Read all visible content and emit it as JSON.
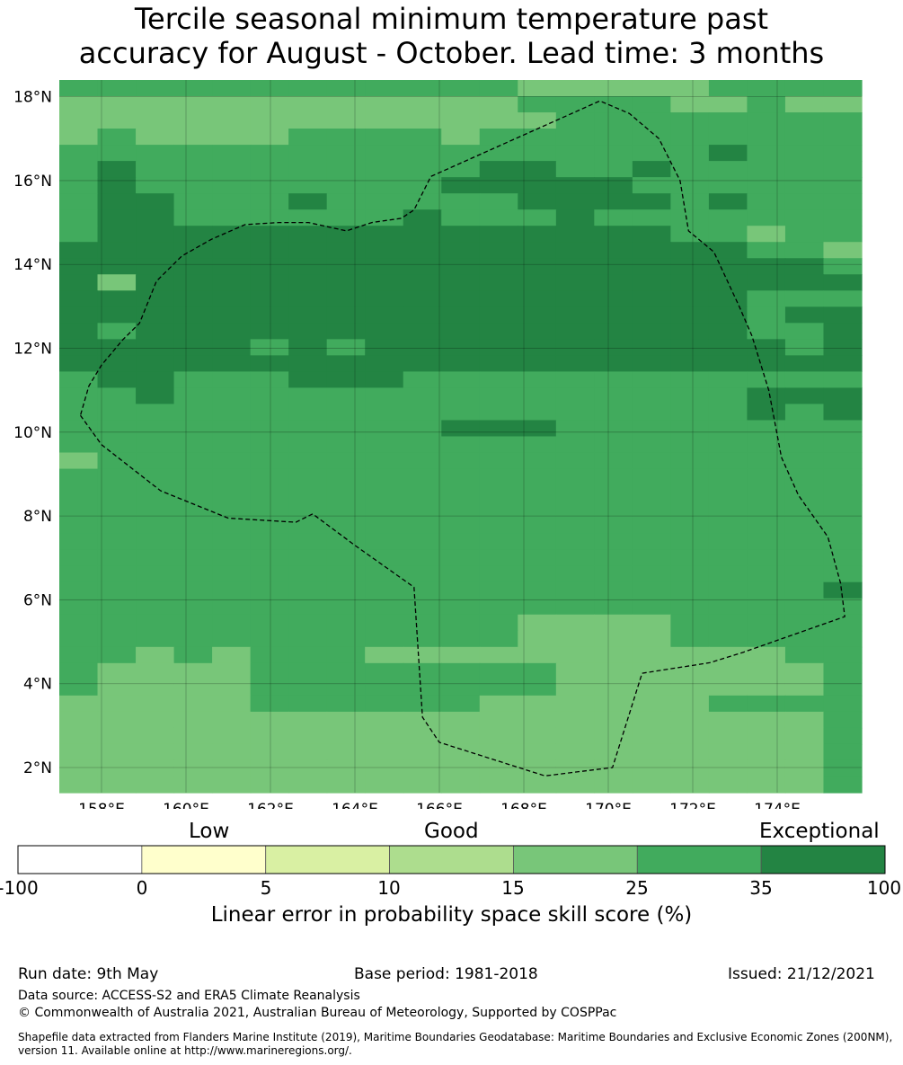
{
  "title_line1": "Tercile seasonal minimum temperature past",
  "title_line2": "accuracy for August - October. Lead time: 3 months",
  "map": {
    "lon_range": [
      157,
      176
    ],
    "lat_range": [
      1.4,
      18.4
    ],
    "x_ticks": [
      "158°E",
      "160°E",
      "162°E",
      "164°E",
      "166°E",
      "168°E",
      "170°E",
      "172°E",
      "174°E"
    ],
    "y_ticks": [
      "18°N",
      "16°N",
      "14°N",
      "12°N",
      "10°N",
      "8°N",
      "6°N",
      "4°N",
      "2°N"
    ],
    "palette": {
      "1": "#78c679",
      "2": "#41ab5d",
      "3": "#238443"
    },
    "grid_rows": [
      "222222222222111112222",
      "111111111111222211211",
      "111111111111122222222",
      "121111222212222222222",
      "222222222222222223222",
      "232222222223322322222",
      "232222222233333222222",
      "233222322222333323222",
      "233222222322232222222",
      "233333333333333322122",
      "333333333333333333221",
      "333333333333333333332",
      "313333333333333333333",
      "333333333333333333222",
      "333333333333333333233",
      "323333333333333333223",
      "333332323333333333323",
      "333333333333333333333",
      "233222333222222222222",
      "223222222222222222333",
      "222222222222222222323",
      "222222222233322222222",
      "222222222222222222222",
      "122222222222222222222",
      "222222222222222222222",
      "222222222222222222222",
      "222222222222222222222",
      "222222222222222222222",
      "222222222222222222222",
      "222222222222222222222",
      "222222222222222222222",
      "222222222222222222223",
      "222222222222222222222",
      "222222222222111122222",
      "222222222222111122222",
      "221212221111111111122",
      "211112222222211111112",
      "211112222222211111112",
      "111112222221111112222",
      "111111111111111111112",
      "111111111111111111112",
      "111111111111111111112",
      "111111111111111111112",
      "111111111111111111112"
    ],
    "eez_boundary": [
      [
        157.5,
        10.4
      ],
      [
        158,
        9.7
      ],
      [
        159.4,
        8.6
      ],
      [
        161,
        7.95
      ],
      [
        162.6,
        7.85
      ],
      [
        163,
        8.05
      ],
      [
        164,
        7.3
      ],
      [
        165.4,
        6.3
      ],
      [
        165.6,
        3.2
      ],
      [
        166,
        2.6
      ],
      [
        168.5,
        1.8
      ],
      [
        170.1,
        2.0
      ],
      [
        170.8,
        4.25
      ],
      [
        172.4,
        4.5
      ],
      [
        173.2,
        4.75
      ],
      [
        175.6,
        5.6
      ],
      [
        175.5,
        6.4
      ],
      [
        175.2,
        7.5
      ],
      [
        174.5,
        8.5
      ],
      [
        174.1,
        9.4
      ],
      [
        173.8,
        11.0
      ],
      [
        173.4,
        12.3
      ],
      [
        173.1,
        13.0
      ],
      [
        172.5,
        14.3
      ],
      [
        171.9,
        14.8
      ],
      [
        171.7,
        16.0
      ],
      [
        171.2,
        17.0
      ],
      [
        170.5,
        17.6
      ],
      [
        169.8,
        17.9
      ],
      [
        165.8,
        16.1
      ],
      [
        165.4,
        15.3
      ],
      [
        165.1,
        15.1
      ],
      [
        164.4,
        15.0
      ],
      [
        163.8,
        14.8
      ],
      [
        162.9,
        15.0
      ],
      [
        162.2,
        15.0
      ],
      [
        161.4,
        14.95
      ],
      [
        160.6,
        14.6
      ],
      [
        159.9,
        14.2
      ],
      [
        159.3,
        13.6
      ],
      [
        158.9,
        12.6
      ],
      [
        158.5,
        12.2
      ],
      [
        158,
        11.6
      ],
      [
        157.7,
        11.1
      ],
      [
        157.5,
        10.4
      ]
    ]
  },
  "legend": {
    "categories": [
      {
        "label": "Low",
        "position": "0"
      },
      {
        "label": "Good",
        "position": "10"
      },
      {
        "label": "Exceptional",
        "position": "100"
      }
    ],
    "bins": [
      {
        "color": "#ffffff"
      },
      {
        "color": "#ffffcc"
      },
      {
        "color": "#d9f0a3"
      },
      {
        "color": "#addd8e"
      },
      {
        "color": "#78c679"
      },
      {
        "color": "#41ab5d"
      },
      {
        "color": "#238443"
      }
    ],
    "boundaries": [
      "-100",
      "0",
      "5",
      "10",
      "15",
      "25",
      "35",
      "100"
    ],
    "title": "Linear error in probability space skill score (%)"
  },
  "footer": {
    "run_date": "Run date: 9th May",
    "base_period": "Base period: 1981-2018",
    "issued": "Issued: 21/12/2021",
    "data_source": "Data source: ACCESS-S2 and ERA5 Climate Reanalysis",
    "copyright": "© Commonwealth of Australia 2021, Australian Bureau of Meteorology, Supported by COSPPac",
    "shapefile_line1": "Shapefile data extracted from Flanders Marine Institute (2019), Maritime Boundaries Geodatabase: Maritime Boundaries and Exclusive Economic Zones (200NM),",
    "shapefile_line2": "version 11. Available online at http://www.marineregions.org/."
  }
}
